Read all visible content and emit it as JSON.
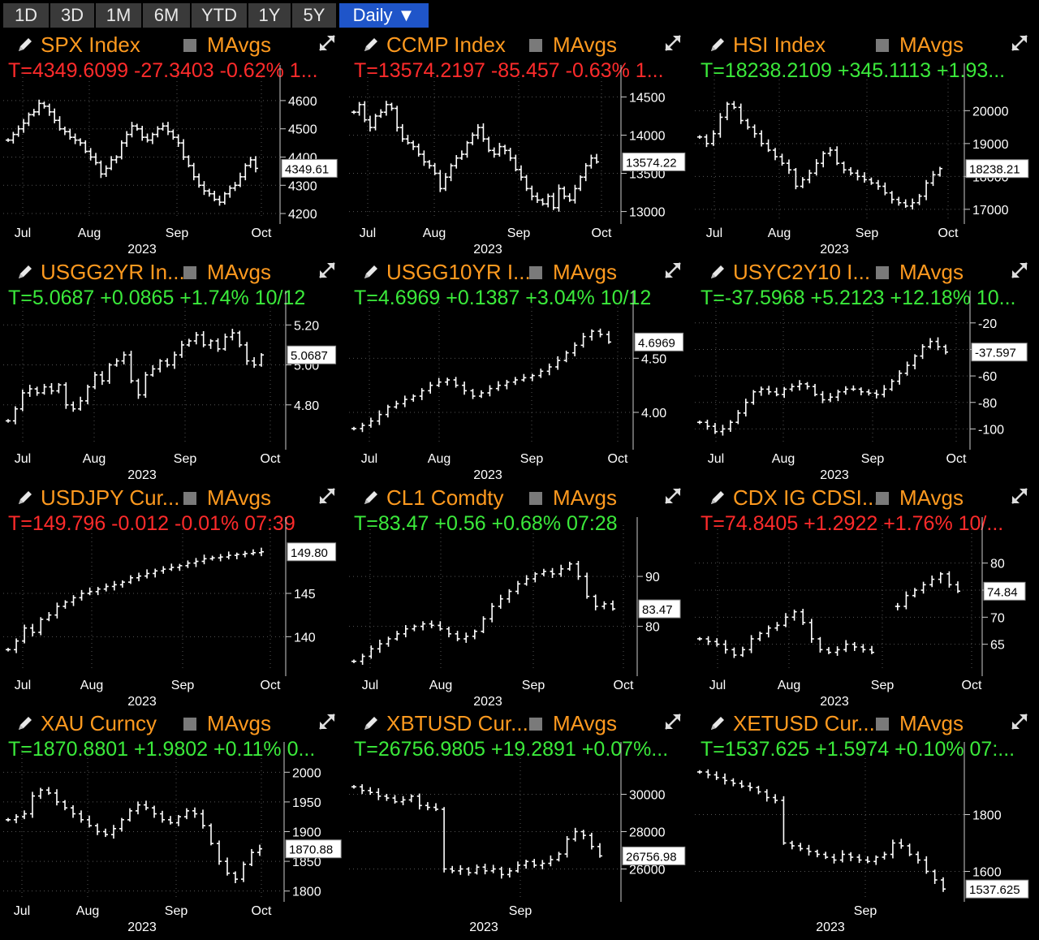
{
  "toolbar": {
    "buttons": [
      "1D",
      "3D",
      "1M",
      "6M",
      "YTD",
      "1Y",
      "5Y"
    ],
    "active": "Daily ▼"
  },
  "colors": {
    "up": "#3bea3b",
    "down": "#ff2b2b",
    "ticker": "#ff9a1f",
    "active_tab": "#1f55c9"
  },
  "panels": [
    {
      "ticker": "SPX Index",
      "mavgs": "MAvgs",
      "quote": "T=4349.6099 -27.3403 -0.62% 1...",
      "direction": "down"
    },
    {
      "ticker": "CCMP Index",
      "mavgs": "MAvgs",
      "quote": "T=13574.2197 -85.457 -0.63% 1...",
      "direction": "down"
    },
    {
      "ticker": "HSI Index",
      "mavgs": "MAvgs",
      "quote": "T=18238.2109 +345.1113 +1.93...",
      "direction": "up"
    },
    {
      "ticker": "USGG2YR In...",
      "mavgs": "MAvgs",
      "quote": "T=5.0687 +0.0865 +1.74% 10/12",
      "direction": "up"
    },
    {
      "ticker": "USGG10YR I...",
      "mavgs": "MAvgs",
      "quote": "T=4.6969 +0.1387 +3.04% 10/12",
      "direction": "up"
    },
    {
      "ticker": "USYC2Y10 I...",
      "mavgs": "MAvgs",
      "quote": "T=-37.5968 +5.2123 +12.18% 10...",
      "direction": "up"
    },
    {
      "ticker": "USDJPY Cur...",
      "mavgs": "MAvgs",
      "quote": "T=149.796 -0.012 -0.01% 07:39",
      "direction": "down"
    },
    {
      "ticker": "CL1 Comdty",
      "mavgs": "MAvgs",
      "quote": "T=83.47 +0.56 +0.68% 07:28",
      "direction": "up"
    },
    {
      "ticker": "CDX IG CDSI...",
      "mavgs": "MAvgs",
      "quote": "T=74.8405 +1.2922 +1.76% 10/...",
      "direction": "down"
    },
    {
      "ticker": "XAU Curncy",
      "mavgs": "MAvgs",
      "quote": "T=1870.8801 +1.9802 +0.11% 0...",
      "direction": "up"
    },
    {
      "ticker": "XBTUSD Cur...",
      "mavgs": "MAvgs",
      "quote": "T=26756.9805 +19.2891 +0.07%...",
      "direction": "up"
    },
    {
      "ticker": "XETUSD Cur...",
      "mavgs": "MAvgs",
      "quote": "T=1537.625 +1.5974 +0.10% 07:...",
      "direction": "up"
    }
  ],
  "chart_data": [
    {
      "type": "line",
      "style": "ohlc-bars",
      "x_ticks": [
        "Jul",
        "Aug",
        "Sep",
        "Oct"
      ],
      "x_label": "2023",
      "ylim": [
        4180,
        4640
      ],
      "y_ticks": [
        "4600",
        "4500",
        "4400",
        "4300",
        "4200"
      ],
      "last_label": "4349.61",
      "series": [
        {
          "values": [
            4460,
            4480,
            4500,
            4520,
            4550,
            4560,
            4590,
            4580,
            4560,
            4530,
            4500,
            4490,
            4470,
            4460,
            4450,
            4420,
            4400,
            4380,
            4340,
            4360,
            4390,
            4400,
            4450,
            4480,
            4510,
            4500,
            4470,
            4460,
            4480,
            4500,
            4510,
            4490,
            4470,
            4450,
            4400,
            4370,
            4330,
            4300,
            4280,
            4270,
            4250,
            4240,
            4270,
            4290,
            4300,
            4330,
            4370,
            4390,
            4360
          ]
        }
      ]
    },
    {
      "type": "line",
      "style": "ohlc-bars",
      "x_ticks": [
        "Jul",
        "Aug",
        "Sep",
        "Oct"
      ],
      "x_label": "2023",
      "ylim": [
        12900,
        14600
      ],
      "y_ticks": [
        "14500",
        "14000",
        "13500",
        "13000"
      ],
      "last_label": "13574.22",
      "series": [
        {
          "values": [
            14300,
            14400,
            14200,
            14100,
            14250,
            14300,
            14400,
            14350,
            14100,
            13950,
            13900,
            13850,
            13750,
            13650,
            13600,
            13500,
            13300,
            13450,
            13600,
            13700,
            13750,
            13900,
            14000,
            14100,
            13950,
            13800,
            13750,
            13850,
            13800,
            13700,
            13550,
            13450,
            13300,
            13200,
            13150,
            13100,
            13200,
            13050,
            13300,
            13200,
            13150,
            13300,
            13450,
            13600,
            13700,
            13650
          ]
        }
      ]
    },
    {
      "type": "line",
      "style": "ohlc-bars",
      "x_ticks": [
        "Jul",
        "Aug",
        "Sep",
        "Oct"
      ],
      "x_label": "2023",
      "ylim": [
        16700,
        20700
      ],
      "y_ticks": [
        "20000",
        "19000",
        "18000",
        "17000"
      ],
      "last_label": "18238.21",
      "series": [
        {
          "values": [
            19200,
            19000,
            19300,
            19800,
            20200,
            20100,
            19700,
            19500,
            19300,
            19000,
            18800,
            18600,
            18400,
            18200,
            17700,
            17900,
            18100,
            18400,
            18700,
            18800,
            18400,
            18200,
            18100,
            18000,
            17900,
            17800,
            17700,
            17500,
            17300,
            17200,
            17100,
            17200,
            17400,
            17800,
            18050,
            18238
          ]
        }
      ]
    },
    {
      "type": "line",
      "style": "ohlc-bars",
      "x_ticks": [
        "Jul",
        "Aug",
        "Sep",
        "Oct"
      ],
      "x_label": "2023",
      "ylim": [
        4.6,
        5.25
      ],
      "y_ticks": [
        "5.20",
        "5.00",
        "4.80"
      ],
      "last_label": "5.0687",
      "series": [
        {
          "values": [
            4.72,
            4.78,
            4.86,
            4.88,
            4.86,
            4.89,
            4.87,
            4.9,
            4.8,
            4.78,
            4.82,
            4.89,
            4.95,
            4.92,
            5.0,
            5.02,
            5.05,
            4.92,
            4.85,
            4.95,
            4.98,
            5.02,
            5.0,
            5.05,
            5.1,
            5.12,
            5.15,
            5.1,
            5.12,
            5.08,
            5.14,
            5.16,
            5.1,
            5.02,
            5.0,
            5.05
          ]
        }
      ]
    },
    {
      "type": "line",
      "style": "ohlc-bars",
      "x_ticks": [
        "Jul",
        "Aug",
        "Sep",
        "Oct"
      ],
      "x_label": "2023",
      "ylim": [
        3.7,
        4.9
      ],
      "y_ticks": [
        "4.50",
        "4.00"
      ],
      "last_label": "4.6969",
      "series": [
        {
          "values": [
            3.85,
            3.88,
            3.92,
            3.98,
            4.05,
            4.08,
            4.12,
            4.15,
            4.2,
            4.25,
            4.28,
            4.3,
            4.25,
            4.2,
            4.15,
            4.18,
            4.22,
            4.25,
            4.28,
            4.3,
            4.32,
            4.34,
            4.38,
            4.42,
            4.48,
            4.55,
            4.62,
            4.7,
            4.75,
            4.72,
            4.65
          ]
        }
      ]
    },
    {
      "type": "line",
      "style": "ohlc-bars",
      "x_ticks": [
        "Jul",
        "Aug",
        "Sep",
        "Oct"
      ],
      "x_label": "2023",
      "ylim": [
        -112,
        -14
      ],
      "y_ticks": [
        "-20",
        "-40",
        "-60",
        "-80",
        "-100"
      ],
      "last_label": "-37.597",
      "series": [
        {
          "values": [
            -95,
            -98,
            -102,
            -100,
            -95,
            -88,
            -80,
            -72,
            -70,
            -72,
            -74,
            -70,
            -68,
            -66,
            -68,
            -74,
            -78,
            -76,
            -72,
            -70,
            -70,
            -72,
            -73,
            -74,
            -70,
            -64,
            -58,
            -52,
            -45,
            -38,
            -34,
            -38,
            -42
          ]
        }
      ]
    },
    {
      "type": "line",
      "style": "ohlc-bars",
      "x_ticks": [
        "Jul",
        "Aug",
        "Sep",
        "Oct"
      ],
      "x_label": "2023",
      "ylim": [
        136,
        151
      ],
      "y_ticks": [
        "145",
        "140"
      ],
      "last_label": "149.80",
      "series": [
        {
          "values": [
            138.5,
            139.5,
            141,
            140.5,
            142,
            142.5,
            143.5,
            144,
            144.5,
            145,
            145.2,
            145.5,
            145.8,
            146,
            146.3,
            146.8,
            147,
            147.3,
            147.6,
            147.8,
            148,
            148.2,
            148.5,
            148.7,
            149,
            149.1,
            149.2,
            149.4,
            149.5,
            149.6,
            149.7,
            149.8
          ]
        }
      ]
    },
    {
      "type": "line",
      "style": "ohlc-bars",
      "x_ticks": [
        "Jul",
        "Aug",
        "Sep",
        "Oct"
      ],
      "x_label": "2023",
      "ylim": [
        71,
        97
      ],
      "y_ticks": [
        "90",
        "80"
      ],
      "last_label": "83.47",
      "series": [
        {
          "values": [
            73,
            74,
            75.5,
            76.5,
            77.5,
            78.5,
            79.5,
            80,
            80.5,
            80.2,
            79.5,
            78.5,
            77.5,
            78,
            79,
            81.5,
            84,
            85.5,
            87,
            88.5,
            89.5,
            90.5,
            91,
            90.5,
            91.5,
            92.5,
            90,
            86,
            84,
            84.5,
            83.5
          ]
        }
      ]
    },
    {
      "type": "line",
      "style": "ohlc-bars",
      "x_ticks": [
        "Jul",
        "Aug",
        "Sep",
        "Oct"
      ],
      "x_label": "2023",
      "ylim": [
        60,
        84
      ],
      "y_ticks": [
        "80",
        "75",
        "70",
        "65"
      ],
      "last_label": "74.84",
      "series": [
        {
          "values": [
            66,
            65.5,
            65,
            64,
            63,
            64,
            66,
            67,
            68,
            68.5,
            70,
            71,
            69,
            66,
            64,
            63.5,
            64,
            65,
            64.5,
            64,
            63.5,
            null,
            null,
            72,
            74,
            75,
            76,
            77,
            78,
            76,
            74.8
          ]
        }
      ]
    },
    {
      "type": "line",
      "style": "ohlc-bars",
      "x_ticks": [
        "Jul",
        "Aug",
        "Sep",
        "Oct"
      ],
      "x_label": "2023",
      "ylim": [
        1790,
        2010
      ],
      "y_ticks": [
        "2000",
        "1950",
        "1900",
        "1850",
        "1800"
      ],
      "last_label": "1870.88",
      "series": [
        {
          "values": [
            1920,
            1925,
            1930,
            1960,
            1970,
            1965,
            1950,
            1940,
            1930,
            1920,
            1910,
            1900,
            1895,
            1905,
            1920,
            1935,
            1945,
            1940,
            1930,
            1920,
            1915,
            1925,
            1935,
            1930,
            1910,
            1880,
            1850,
            1830,
            1820,
            1845,
            1865,
            1871
          ]
        }
      ]
    },
    {
      "type": "line",
      "style": "ohlc-bars",
      "x_ticks": [
        "Sep"
      ],
      "x_label": "2023",
      "ylim": [
        24500,
        31500
      ],
      "y_ticks": [
        "30000",
        "28000",
        "26000"
      ],
      "last_label": "26756.98",
      "series": [
        {
          "values": [
            30400,
            30200,
            30100,
            29900,
            29800,
            29600,
            29700,
            29900,
            29400,
            29300,
            29200,
            26000,
            25900,
            26000,
            25800,
            26100,
            25900,
            26000,
            25700,
            25900,
            26200,
            26400,
            26200,
            26300,
            26500,
            26800,
            27600,
            28000,
            27800,
            27200,
            26700
          ]
        }
      ]
    },
    {
      "type": "line",
      "style": "ohlc-bars",
      "x_ticks": [
        "Sep"
      ],
      "x_label": "2023",
      "ylim": [
        1510,
        1970
      ],
      "y_ticks": [
        "1800",
        "1600"
      ],
      "last_label": "1537.625",
      "series": [
        {
          "values": [
            1950,
            1940,
            1930,
            1920,
            1910,
            1900,
            1895,
            1880,
            1860,
            1850,
            1700,
            1690,
            1680,
            1670,
            1660,
            1650,
            1640,
            1660,
            1650,
            1640,
            1635,
            1650,
            1660,
            1700,
            1690,
            1660,
            1640,
            1600,
            1570,
            1538
          ]
        }
      ]
    }
  ]
}
